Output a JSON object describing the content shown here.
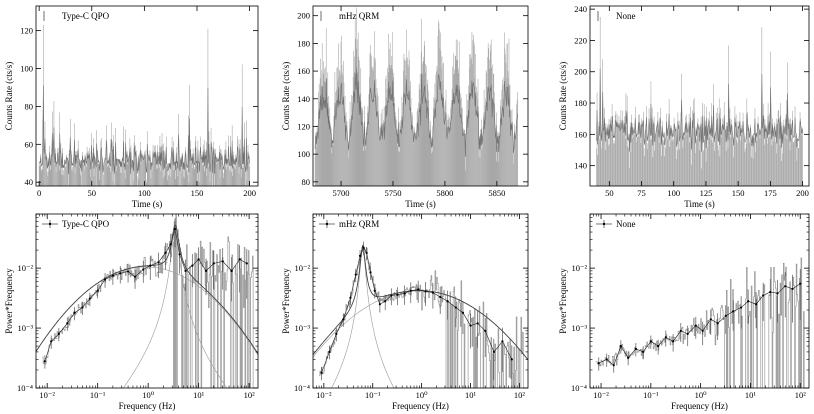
{
  "colors": {
    "lightcurve_bar": "#a8a8a8",
    "lightcurve_line": "#6f6f6f",
    "pds_line": "#8a8a8a",
    "pds_errorbar": "#555555",
    "model_total": "#444444",
    "model_component": "#9a9a9a",
    "axes": "#000000"
  },
  "chart_data": [
    {
      "type": "line",
      "legend": "Type-C QPO",
      "xlabel": "Time (s)",
      "ylabel": "Counts Rate (cts/s)",
      "xlim": [
        -3,
        208
      ],
      "ylim": [
        38,
        133
      ],
      "xticks": [
        0,
        50,
        100,
        150,
        200
      ],
      "yticks": [
        40,
        60,
        80,
        100,
        120
      ],
      "series": [
        {
          "name": "Type-C QPO",
          "t_start": 0,
          "t_end": 200,
          "n_points": 400,
          "mean": 52,
          "sd": 7,
          "peak_max": 123,
          "pattern": "noise"
        }
      ]
    },
    {
      "type": "line",
      "legend": "mHz QRM",
      "xlabel": "Time (s)",
      "ylabel": "Counts Rate (cts/s)",
      "xlim": [
        5673,
        5880
      ],
      "ylim": [
        77,
        207
      ],
      "xticks": [
        5700,
        5750,
        5800,
        5850
      ],
      "yticks": [
        80,
        100,
        120,
        140,
        160,
        180,
        200
      ],
      "series": [
        {
          "name": "mHz QRM",
          "t_start": 5675,
          "t_end": 5870,
          "n_points": 400,
          "base": 110,
          "amp": 65,
          "period_s": 16,
          "sd": 9,
          "pattern": "periodic-flares"
        }
      ]
    },
    {
      "type": "line",
      "legend": "None",
      "xlabel": "Time (s)",
      "ylabel": "Counts Rate (cts/s)",
      "xlim": [
        35,
        205
      ],
      "ylim": [
        127,
        242
      ],
      "xticks": [
        50,
        75,
        100,
        125,
        150,
        175,
        200
      ],
      "yticks": [
        140,
        160,
        180,
        200,
        220,
        240
      ],
      "series": [
        {
          "name": "None",
          "t_start": 40,
          "t_end": 200,
          "n_points": 330,
          "mean": 162,
          "sd": 10,
          "peak_max": 235,
          "pattern": "noise"
        }
      ]
    },
    {
      "type": "line",
      "legend": "Type-C QPO",
      "xlabel": "Frequency (Hz)",
      "ylabel": "Power*Frequency",
      "xscale": "log",
      "yscale": "log",
      "xlim": [
        0.006,
        150
      ],
      "ylim": [
        0.0001,
        0.08
      ],
      "xticks": [
        0.01,
        0.1,
        1,
        10,
        100
      ],
      "xticklabels": [
        "10⁻²",
        "10⁻¹",
        "10⁰",
        "10¹",
        "10²"
      ],
      "yticks": [
        0.0001,
        0.001,
        0.01
      ],
      "yticklabels": [
        "10⁻⁴",
        "10⁻³",
        "10⁻²"
      ],
      "model": [
        {
          "kind": "broad",
          "norm": 0.0105,
          "center": 0.9,
          "width": 1.15
        },
        {
          "kind": "lorentz",
          "norm": 0.045,
          "center": 3.4,
          "width": 0.28
        }
      ],
      "data_points": [
        [
          0.009,
          0.00028
        ],
        [
          0.012,
          0.0006
        ],
        [
          0.017,
          0.0008
        ],
        [
          0.025,
          0.0012
        ],
        [
          0.035,
          0.0018
        ],
        [
          0.05,
          0.0022
        ],
        [
          0.07,
          0.0031
        ],
        [
          0.1,
          0.0042
        ],
        [
          0.14,
          0.0065
        ],
        [
          0.2,
          0.0075
        ],
        [
          0.28,
          0.0082
        ],
        [
          0.4,
          0.0088
        ],
        [
          0.55,
          0.0072
        ],
        [
          0.8,
          0.0095
        ],
        [
          1.1,
          0.011
        ],
        [
          1.6,
          0.0125
        ],
        [
          2.2,
          0.018
        ],
        [
          2.8,
          0.025
        ],
        [
          3.4,
          0.045
        ],
        [
          4.2,
          0.017
        ],
        [
          5.5,
          0.009
        ],
        [
          7.5,
          0.011
        ],
        [
          10,
          0.014
        ],
        [
          14,
          0.009
        ],
        [
          20,
          0.012
        ],
        [
          30,
          0.013
        ],
        [
          45,
          0.009
        ],
        [
          65,
          0.014
        ],
        [
          90,
          0.012
        ]
      ]
    },
    {
      "type": "line",
      "legend": "mHz QRM",
      "xlabel": "Frequency (Hz)",
      "ylabel": "Power*Frequency",
      "xscale": "log",
      "yscale": "log",
      "xlim": [
        0.006,
        150
      ],
      "ylim": [
        0.0001,
        0.08
      ],
      "xticks": [
        0.01,
        0.1,
        1,
        10,
        100
      ],
      "xticklabels": [
        "10⁻²",
        "10⁻¹",
        "10⁰",
        "10¹",
        "10²"
      ],
      "yticks": [
        0.0001,
        0.001,
        0.01
      ],
      "yticklabels": [
        "10⁻⁴",
        "10⁻³",
        "10⁻²"
      ],
      "model": [
        {
          "kind": "lorentz",
          "norm": 0.0215,
          "center": 0.062,
          "width": 0.22
        },
        {
          "kind": "broad",
          "norm": 0.0042,
          "center": 0.9,
          "width": 1.3
        }
      ],
      "data_points": [
        [
          0.009,
          0.00018
        ],
        [
          0.013,
          0.0004
        ],
        [
          0.018,
          0.0008
        ],
        [
          0.025,
          0.0014
        ],
        [
          0.035,
          0.0032
        ],
        [
          0.045,
          0.0078
        ],
        [
          0.055,
          0.016
        ],
        [
          0.065,
          0.022
        ],
        [
          0.075,
          0.018
        ],
        [
          0.09,
          0.0085
        ],
        [
          0.11,
          0.0042
        ],
        [
          0.14,
          0.0025
        ],
        [
          0.18,
          0.0028
        ],
        [
          0.24,
          0.0035
        ],
        [
          0.32,
          0.0036
        ],
        [
          0.45,
          0.0038
        ],
        [
          0.6,
          0.0042
        ],
        [
          0.85,
          0.0044
        ],
        [
          1.2,
          0.0041
        ],
        [
          1.7,
          0.0039
        ],
        [
          2.4,
          0.0033
        ],
        [
          3.4,
          0.0028
        ],
        [
          5,
          0.0022
        ],
        [
          7,
          0.0018
        ],
        [
          10,
          0.0011
        ],
        [
          14,
          0.0012
        ],
        [
          20,
          0.0009
        ],
        [
          30,
          0.0004
        ],
        [
          45,
          0.0006
        ],
        [
          70,
          0.0003
        ]
      ]
    },
    {
      "type": "line",
      "legend": "None",
      "xlabel": "Frequency (Hz)",
      "ylabel": "Power*Frequency",
      "xscale": "log",
      "yscale": "log",
      "xlim": [
        0.006,
        150
      ],
      "ylim": [
        0.0001,
        0.08
      ],
      "xticks": [
        0.01,
        0.1,
        1,
        10,
        100
      ],
      "xticklabels": [
        "10⁻²",
        "10⁻¹",
        "10⁰",
        "10¹",
        "10²"
      ],
      "yticks": [
        0.0001,
        0.001,
        0.01
      ],
      "yticklabels": [
        "10⁻⁴",
        "10⁻³",
        "10⁻²"
      ],
      "model": [],
      "data_points": [
        [
          0.009,
          0.00026
        ],
        [
          0.013,
          0.0003
        ],
        [
          0.018,
          0.00024
        ],
        [
          0.025,
          0.0005
        ],
        [
          0.035,
          0.00032
        ],
        [
          0.05,
          0.00045
        ],
        [
          0.07,
          0.0004
        ],
        [
          0.1,
          0.0006
        ],
        [
          0.14,
          0.0005
        ],
        [
          0.2,
          0.0007
        ],
        [
          0.28,
          0.0006
        ],
        [
          0.4,
          0.0009
        ],
        [
          0.55,
          0.0008
        ],
        [
          0.8,
          0.0011
        ],
        [
          1.1,
          0.0009
        ],
        [
          1.6,
          0.0014
        ],
        [
          2.2,
          0.0012
        ],
        [
          3.2,
          0.0016
        ],
        [
          4.5,
          0.0019
        ],
        [
          6.5,
          0.0022
        ],
        [
          9,
          0.0028
        ],
        [
          13,
          0.0025
        ],
        [
          18,
          0.0035
        ],
        [
          25,
          0.004
        ],
        [
          35,
          0.0038
        ],
        [
          50,
          0.005
        ],
        [
          70,
          0.0045
        ],
        [
          100,
          0.0055
        ]
      ]
    }
  ]
}
